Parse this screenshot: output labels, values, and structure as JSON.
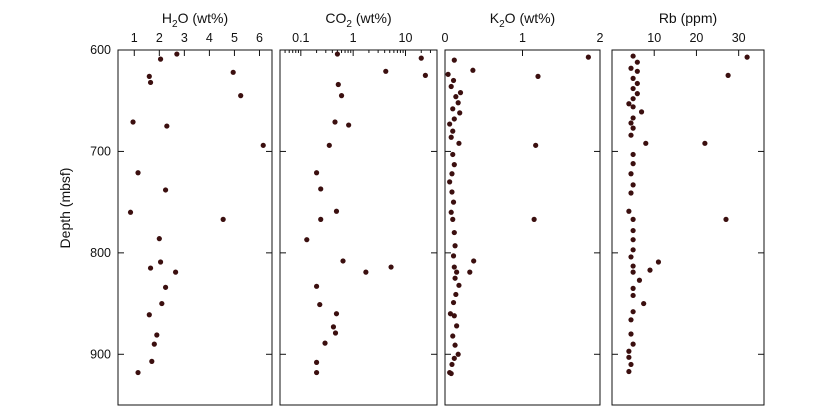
{
  "chart_data": {
    "type": "scatter",
    "y_axis": {
      "label": "Depth (mbsf)",
      "range": [
        600,
        950
      ],
      "ticks": [
        600,
        700,
        800,
        900
      ],
      "tick_labels": [
        "600",
        "700",
        "800",
        "900"
      ],
      "inverted": true
    },
    "panels": [
      {
        "id": "h2o",
        "title_main": "H",
        "title_sub": "2",
        "title_rest": "O (wt%)",
        "x_scale": "linear",
        "x_range": [
          0.35,
          6.5
        ],
        "x_ticks": [
          1,
          2,
          3,
          4,
          5,
          6
        ],
        "x_tick_labels": [
          "1",
          "2",
          "3",
          "4",
          "5",
          "6"
        ],
        "points": [
          {
            "x": 2.7,
            "y": 604
          },
          {
            "x": 2.05,
            "y": 609
          },
          {
            "x": 4.95,
            "y": 622
          },
          {
            "x": 1.6,
            "y": 626
          },
          {
            "x": 1.65,
            "y": 632
          },
          {
            "x": 5.25,
            "y": 645
          },
          {
            "x": 0.95,
            "y": 671
          },
          {
            "x": 2.3,
            "y": 675
          },
          {
            "x": 6.15,
            "y": 694
          },
          {
            "x": 1.15,
            "y": 721
          },
          {
            "x": 2.25,
            "y": 738
          },
          {
            "x": 0.85,
            "y": 760
          },
          {
            "x": 4.55,
            "y": 767
          },
          {
            "x": 2.0,
            "y": 786
          },
          {
            "x": 2.05,
            "y": 809
          },
          {
            "x": 1.65,
            "y": 815
          },
          {
            "x": 2.65,
            "y": 819
          },
          {
            "x": 2.25,
            "y": 834
          },
          {
            "x": 2.1,
            "y": 850
          },
          {
            "x": 1.6,
            "y": 861
          },
          {
            "x": 1.9,
            "y": 881
          },
          {
            "x": 1.8,
            "y": 890
          },
          {
            "x": 1.7,
            "y": 907
          },
          {
            "x": 1.15,
            "y": 918
          }
        ]
      },
      {
        "id": "co2",
        "title_main": "CO",
        "title_sub": "2",
        "title_rest": " (wt%)",
        "x_scale": "log",
        "x_range": [
          0.04,
          40
        ],
        "x_ticks": [
          0.1,
          1,
          10
        ],
        "x_tick_labels": [
          "0.1",
          "1",
          "10"
        ],
        "minor_ticks": [
          0.05,
          0.06,
          0.07,
          0.08,
          0.09,
          0.2,
          0.3,
          0.4,
          0.5,
          0.6,
          0.7,
          0.8,
          0.9,
          2,
          3,
          4,
          5,
          6,
          7,
          8,
          9,
          20,
          30
        ],
        "points": [
          {
            "x": 0.5,
            "y": 604
          },
          {
            "x": 20,
            "y": 608
          },
          {
            "x": 4.2,
            "y": 621
          },
          {
            "x": 24,
            "y": 625
          },
          {
            "x": 0.52,
            "y": 634
          },
          {
            "x": 0.6,
            "y": 645
          },
          {
            "x": 0.45,
            "y": 671
          },
          {
            "x": 0.82,
            "y": 674
          },
          {
            "x": 0.35,
            "y": 694
          },
          {
            "x": 0.2,
            "y": 721
          },
          {
            "x": 0.24,
            "y": 737
          },
          {
            "x": 0.48,
            "y": 759
          },
          {
            "x": 0.24,
            "y": 767
          },
          {
            "x": 0.13,
            "y": 787
          },
          {
            "x": 0.64,
            "y": 808
          },
          {
            "x": 5.3,
            "y": 814
          },
          {
            "x": 1.75,
            "y": 819
          },
          {
            "x": 0.2,
            "y": 833
          },
          {
            "x": 0.23,
            "y": 851
          },
          {
            "x": 0.48,
            "y": 860
          },
          {
            "x": 0.42,
            "y": 873
          },
          {
            "x": 0.46,
            "y": 879
          },
          {
            "x": 0.29,
            "y": 889
          },
          {
            "x": 0.2,
            "y": 908
          },
          {
            "x": 0.2,
            "y": 918
          }
        ]
      },
      {
        "id": "k2o",
        "title_main": "K",
        "title_sub": "2",
        "title_rest": "O (wt%)",
        "x_scale": "linear",
        "x_range": [
          0,
          2
        ],
        "x_ticks": [
          0,
          1,
          2
        ],
        "x_tick_labels": [
          "0",
          "1",
          "2"
        ],
        "points": [
          {
            "x": 1.85,
            "y": 607
          },
          {
            "x": 0.12,
            "y": 610
          },
          {
            "x": 0.36,
            "y": 620
          },
          {
            "x": 0.04,
            "y": 624
          },
          {
            "x": 1.2,
            "y": 626
          },
          {
            "x": 0.11,
            "y": 630
          },
          {
            "x": 0.08,
            "y": 636
          },
          {
            "x": 0.2,
            "y": 642
          },
          {
            "x": 0.14,
            "y": 646
          },
          {
            "x": 0.17,
            "y": 652
          },
          {
            "x": 0.1,
            "y": 658
          },
          {
            "x": 0.19,
            "y": 662
          },
          {
            "x": 0.12,
            "y": 668
          },
          {
            "x": 0.06,
            "y": 673
          },
          {
            "x": 0.1,
            "y": 680
          },
          {
            "x": 0.08,
            "y": 686
          },
          {
            "x": 0.18,
            "y": 692
          },
          {
            "x": 1.17,
            "y": 694
          },
          {
            "x": 0.1,
            "y": 703
          },
          {
            "x": 0.12,
            "y": 713
          },
          {
            "x": 0.09,
            "y": 722
          },
          {
            "x": 0.06,
            "y": 730
          },
          {
            "x": 0.09,
            "y": 740
          },
          {
            "x": 0.11,
            "y": 750
          },
          {
            "x": 0.08,
            "y": 760
          },
          {
            "x": 0.1,
            "y": 767
          },
          {
            "x": 1.15,
            "y": 767
          },
          {
            "x": 0.12,
            "y": 780
          },
          {
            "x": 0.13,
            "y": 793
          },
          {
            "x": 0.11,
            "y": 803
          },
          {
            "x": 0.37,
            "y": 808
          },
          {
            "x": 0.12,
            "y": 814
          },
          {
            "x": 0.15,
            "y": 819
          },
          {
            "x": 0.32,
            "y": 819
          },
          {
            "x": 0.13,
            "y": 825
          },
          {
            "x": 0.18,
            "y": 832
          },
          {
            "x": 0.14,
            "y": 841
          },
          {
            "x": 0.11,
            "y": 849
          },
          {
            "x": 0.07,
            "y": 860
          },
          {
            "x": 0.12,
            "y": 862
          },
          {
            "x": 0.15,
            "y": 872
          },
          {
            "x": 0.1,
            "y": 882
          },
          {
            "x": 0.13,
            "y": 891
          },
          {
            "x": 0.17,
            "y": 900
          },
          {
            "x": 0.12,
            "y": 904
          },
          {
            "x": 0.09,
            "y": 910
          },
          {
            "x": 0.06,
            "y": 918
          },
          {
            "x": 0.08,
            "y": 919
          }
        ]
      },
      {
        "id": "rb",
        "title_main": "Rb (ppm)",
        "title_sub": "",
        "title_rest": "",
        "x_scale": "linear",
        "x_range": [
          0,
          36
        ],
        "x_ticks": [
          10,
          20,
          30
        ],
        "x_tick_labels": [
          "10",
          "20",
          "30"
        ],
        "points": [
          {
            "x": 32,
            "y": 607
          },
          {
            "x": 5,
            "y": 606
          },
          {
            "x": 6,
            "y": 612
          },
          {
            "x": 4.5,
            "y": 618
          },
          {
            "x": 6,
            "y": 621
          },
          {
            "x": 27.5,
            "y": 625
          },
          {
            "x": 5,
            "y": 628
          },
          {
            "x": 6,
            "y": 633
          },
          {
            "x": 5,
            "y": 638
          },
          {
            "x": 6,
            "y": 643
          },
          {
            "x": 5,
            "y": 648
          },
          {
            "x": 4,
            "y": 653
          },
          {
            "x": 5,
            "y": 656
          },
          {
            "x": 7,
            "y": 661
          },
          {
            "x": 5,
            "y": 667
          },
          {
            "x": 4.5,
            "y": 672
          },
          {
            "x": 5,
            "y": 677
          },
          {
            "x": 4.5,
            "y": 684
          },
          {
            "x": 8,
            "y": 692
          },
          {
            "x": 22,
            "y": 692
          },
          {
            "x": 5,
            "y": 703
          },
          {
            "x": 5,
            "y": 712
          },
          {
            "x": 4.5,
            "y": 722
          },
          {
            "x": 5,
            "y": 733
          },
          {
            "x": 4.5,
            "y": 741
          },
          {
            "x": 4,
            "y": 759
          },
          {
            "x": 5,
            "y": 767
          },
          {
            "x": 27,
            "y": 767
          },
          {
            "x": 5,
            "y": 778
          },
          {
            "x": 5,
            "y": 787
          },
          {
            "x": 5,
            "y": 797
          },
          {
            "x": 4.5,
            "y": 804
          },
          {
            "x": 11,
            "y": 809
          },
          {
            "x": 5,
            "y": 813
          },
          {
            "x": 9,
            "y": 817
          },
          {
            "x": 5,
            "y": 819
          },
          {
            "x": 6.5,
            "y": 827
          },
          {
            "x": 5,
            "y": 835
          },
          {
            "x": 5,
            "y": 842
          },
          {
            "x": 7.5,
            "y": 850
          },
          {
            "x": 5,
            "y": 858
          },
          {
            "x": 4.5,
            "y": 866
          },
          {
            "x": 4.5,
            "y": 880
          },
          {
            "x": 5,
            "y": 890
          },
          {
            "x": 4,
            "y": 897
          },
          {
            "x": 4,
            "y": 903
          },
          {
            "x": 4.5,
            "y": 910
          },
          {
            "x": 4,
            "y": 917
          }
        ]
      }
    ]
  }
}
